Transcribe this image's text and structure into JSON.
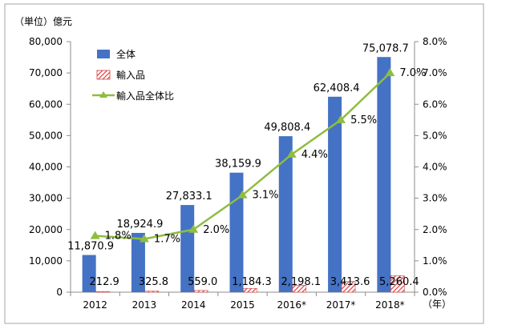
{
  "chart_data": {
    "type": "bar",
    "categories": [
      "2012",
      "2013",
      "2014",
      "2015",
      "2016*",
      "2017*",
      "2018*"
    ],
    "series": [
      {
        "name": "全体",
        "kind": "bar",
        "axis": "left",
        "color": "#4472c4",
        "values": [
          11870.9,
          18924.9,
          27833.1,
          38159.9,
          49808.4,
          62408.4,
          75078.7
        ],
        "labels": [
          "11,870.9",
          "18,924.9",
          "27,833.1",
          "38,159.9",
          "49,808.4",
          "62,408.4",
          "75,078.7"
        ]
      },
      {
        "name": "輸入品",
        "kind": "bar",
        "axis": "left",
        "color": "#e06666",
        "pattern": "diagonal-hatch",
        "values": [
          212.9,
          325.8,
          559.0,
          1184.3,
          2198.1,
          3413.6,
          5260.4
        ],
        "labels": [
          "212.9",
          "325.8",
          "559.0",
          "1,184.3",
          "2,198.1",
          "3,413.6",
          "5,260.4"
        ]
      },
      {
        "name": "輸入品全体比",
        "kind": "line",
        "axis": "right",
        "color": "#8fbd3f",
        "marker": "triangle",
        "values": [
          1.8,
          1.7,
          2.0,
          3.1,
          4.4,
          5.5,
          7.0
        ],
        "labels": [
          "1.8%",
          "1.7%",
          "2.0%",
          "3.1%",
          "4.4%",
          "5.5%",
          "7.0%"
        ]
      }
    ],
    "y_left": {
      "label": "（単位）億元",
      "ylim": [
        0,
        80000
      ],
      "ticks": [
        0,
        10000,
        20000,
        30000,
        40000,
        50000,
        60000,
        70000,
        80000
      ],
      "tick_labels": [
        "0",
        "10,000",
        "20,000",
        "30,000",
        "40,000",
        "50,000",
        "60,000",
        "70,000",
        "80,000"
      ]
    },
    "y_right": {
      "label": "",
      "ylim": [
        0,
        8.0
      ],
      "ticks": [
        0,
        1,
        2,
        3,
        4,
        5,
        6,
        7,
        8
      ],
      "tick_labels": [
        "0.0%",
        "1.0%",
        "2.0%",
        "3.0%",
        "4.0%",
        "5.0%",
        "6.0%",
        "7.0%",
        "8.0%"
      ]
    },
    "x_unit": "（年）",
    "grid": false,
    "legend_position": "top-left"
  }
}
